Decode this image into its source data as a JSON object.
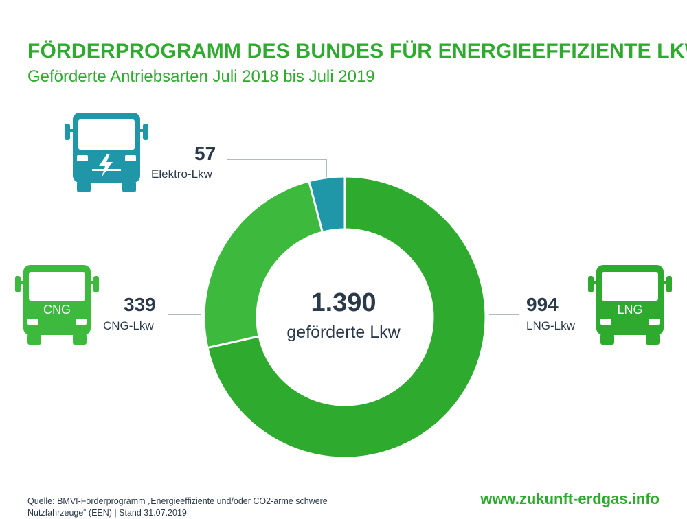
{
  "header": {
    "title": "FÖRDERPROGRAMM DES BUNDES FÜR ENERGIEEFFIZIENTE LKW",
    "subtitle": "Geförderte Antriebsarten Juli 2018 bis Juli 2019"
  },
  "chart_data": {
    "type": "pie",
    "title": "FÖRDERPROGRAMM DES BUNDES FÜR ENERGIEEFFIZIENTE LKW",
    "subtitle": "Geförderte Antriebsarten Juli 2018 bis Juli 2019",
    "donut": true,
    "total": {
      "value": "1.390",
      "label": "geförderte Lkw"
    },
    "segments": [
      {
        "name": "LNG-Lkw",
        "value": 994,
        "value_label": "994",
        "color": "#2eaa2e"
      },
      {
        "name": "CNG-Lkw",
        "value": 339,
        "value_label": "339",
        "color": "#3dba3d"
      },
      {
        "name": "Elektro-Lkw",
        "value": 57,
        "value_label": "57",
        "color": "#1f97a8"
      }
    ]
  },
  "icons": {
    "electric_truck": {
      "name": "electric-truck-icon",
      "color": "#1f97a8"
    },
    "cng_truck": {
      "name": "cng-truck-icon",
      "color": "#3dba3d",
      "text": "CNG"
    },
    "lng_truck": {
      "name": "lng-truck-icon",
      "color": "#2eaa2e",
      "text": "LNG"
    }
  },
  "footer": {
    "source": "Quelle: BMVI-Förderprogramm „Energieeffiziente und/oder CO2-arme schwere Nutzfahrzeuge“ (EEN) | Stand 31.07.2019",
    "website": "www.zukunft-erdgas.info"
  }
}
